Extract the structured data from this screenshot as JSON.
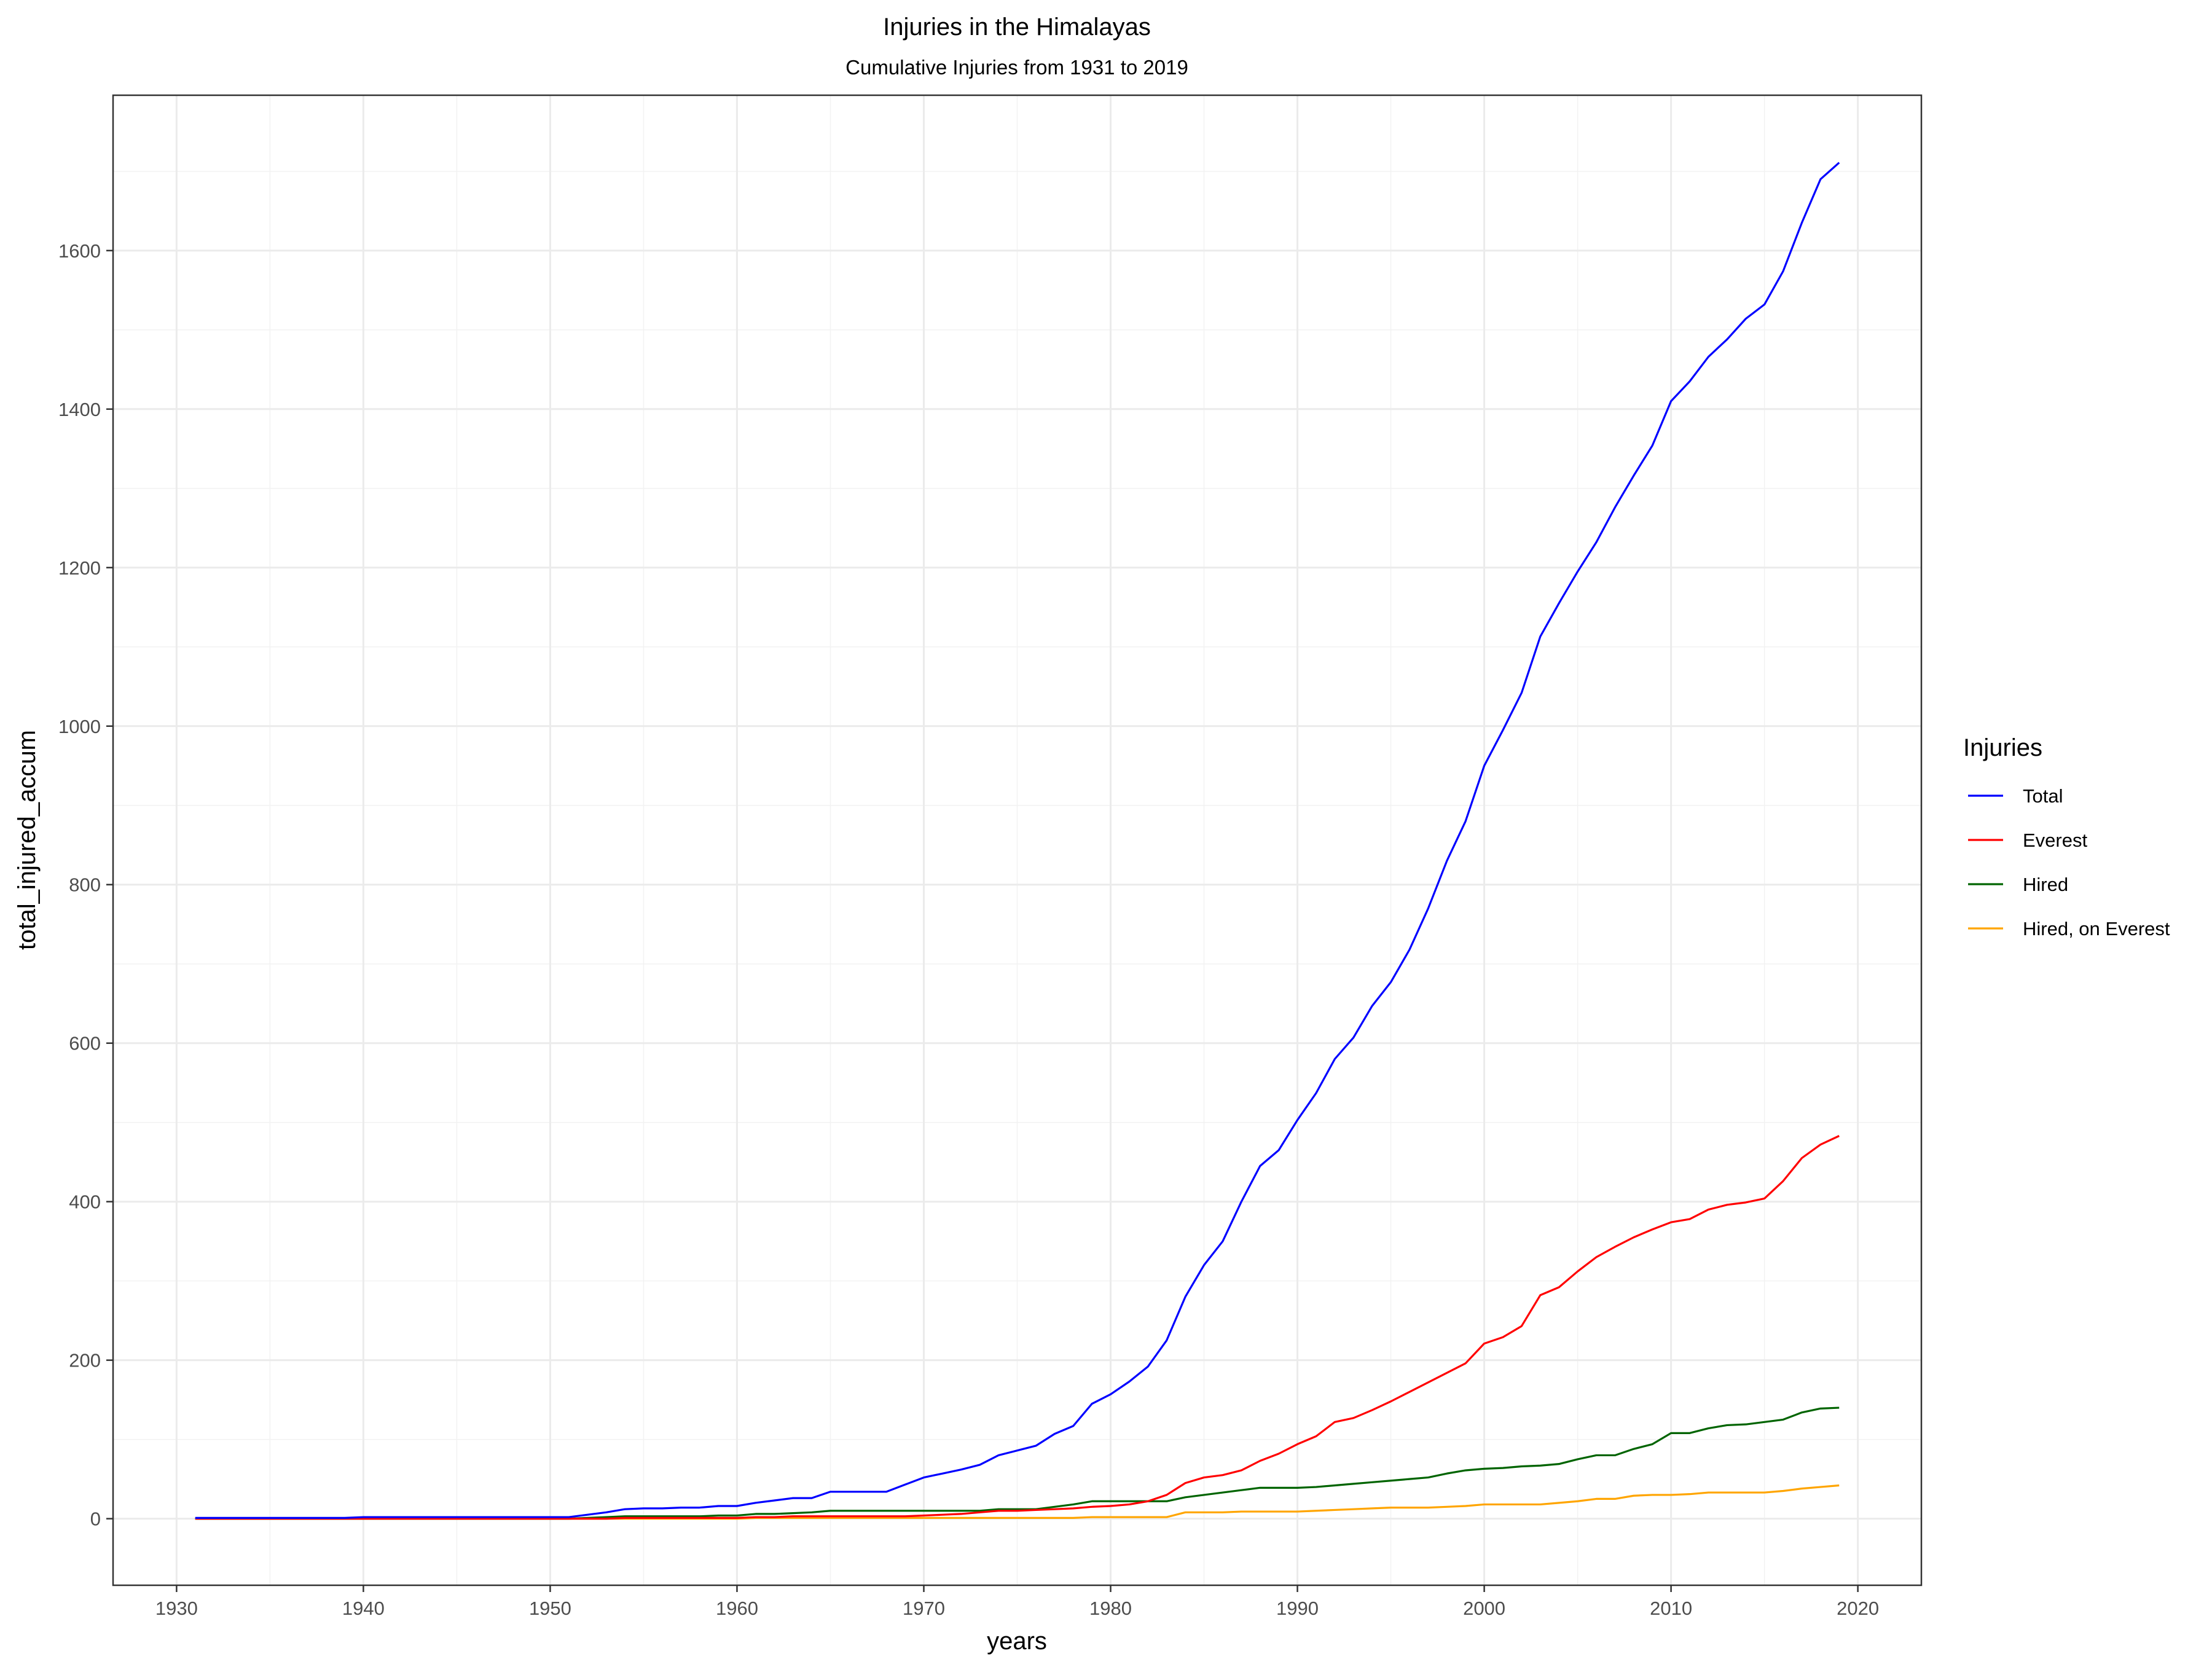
{
  "chart_data": {
    "type": "line",
    "title": "Injuries in the Himalayas",
    "subtitle": "Cumulative Injuries from 1931 to 2019",
    "xlabel": "years",
    "ylabel": "total_injured_accum",
    "xlim": [
      1926.6,
      2023.4
    ],
    "ylim": [
      -84,
      1796
    ],
    "x_ticks": [
      1930,
      1940,
      1950,
      1960,
      1970,
      1980,
      1990,
      2000,
      2010,
      2020
    ],
    "y_ticks": [
      0,
      200,
      400,
      600,
      800,
      1000,
      1200,
      1400,
      1600
    ],
    "grid": true,
    "legend": {
      "title": "Injuries",
      "position": "right"
    },
    "x": [
      1931,
      1932,
      1933,
      1934,
      1935,
      1936,
      1937,
      1938,
      1939,
      1940,
      1941,
      1942,
      1943,
      1944,
      1945,
      1946,
      1947,
      1948,
      1949,
      1950,
      1951,
      1952,
      1953,
      1954,
      1955,
      1956,
      1957,
      1958,
      1959,
      1960,
      1961,
      1962,
      1963,
      1964,
      1965,
      1966,
      1967,
      1968,
      1969,
      1970,
      1971,
      1972,
      1973,
      1974,
      1975,
      1976,
      1977,
      1978,
      1979,
      1980,
      1981,
      1982,
      1983,
      1984,
      1985,
      1986,
      1987,
      1988,
      1989,
      1990,
      1991,
      1992,
      1993,
      1994,
      1995,
      1996,
      1997,
      1998,
      1999,
      2000,
      2001,
      2002,
      2003,
      2004,
      2005,
      2006,
      2007,
      2008,
      2009,
      2010,
      2011,
      2012,
      2013,
      2014,
      2015,
      2016,
      2017,
      2018,
      2019
    ],
    "series": [
      {
        "name": "Total",
        "color": "#0000FF",
        "values": [
          1,
          1,
          1,
          1,
          1,
          1,
          1,
          1,
          1,
          2,
          2,
          2,
          2,
          2,
          2,
          2,
          2,
          2,
          2,
          2,
          2,
          5,
          8,
          12,
          13,
          13,
          14,
          14,
          16,
          16,
          20,
          23,
          26,
          26,
          34,
          34,
          34,
          34,
          43,
          52,
          57,
          62,
          68,
          80,
          86,
          92,
          107,
          117,
          145,
          157,
          173,
          192,
          225,
          280,
          320,
          350,
          400,
          445,
          465,
          503,
          537,
          580,
          607,
          647,
          677,
          718,
          770,
          830,
          880,
          950,
          995,
          1042,
          1113,
          1155,
          1195,
          1232,
          1276,
          1316,
          1354,
          1410,
          1435,
          1466,
          1488,
          1514,
          1532,
          1574,
          1635,
          1690,
          1711
        ]
      },
      {
        "name": "Everest",
        "color": "#FF0000",
        "values": [
          0,
          0,
          0,
          0,
          0,
          0,
          0,
          0,
          0,
          0,
          0,
          0,
          0,
          0,
          0,
          0,
          0,
          0,
          0,
          0,
          0,
          0,
          0,
          1,
          1,
          1,
          1,
          1,
          1,
          1,
          2,
          2,
          3,
          3,
          3,
          3,
          3,
          3,
          3,
          4,
          5,
          6,
          8,
          10,
          10,
          11,
          12,
          13,
          15,
          16,
          18,
          22,
          30,
          45,
          52,
          55,
          61,
          73,
          82,
          94,
          104,
          122,
          127,
          137,
          148,
          160,
          172,
          184,
          196,
          221,
          229,
          243,
          282,
          292,
          312,
          330,
          343,
          355,
          365,
          374,
          378,
          390,
          396,
          399,
          404,
          426,
          455,
          472,
          483
        ]
      },
      {
        "name": "Hired",
        "color": "#006400",
        "values": [
          0,
          0,
          0,
          0,
          0,
          0,
          0,
          0,
          0,
          0,
          0,
          0,
          0,
          0,
          0,
          0,
          0,
          0,
          0,
          0,
          0,
          1,
          2,
          3,
          3,
          3,
          3,
          3,
          4,
          4,
          6,
          6,
          7,
          8,
          10,
          10,
          10,
          10,
          10,
          10,
          10,
          10,
          10,
          12,
          12,
          12,
          15,
          18,
          22,
          22,
          22,
          22,
          22,
          27,
          30,
          33,
          36,
          39,
          39,
          39,
          40,
          42,
          44,
          46,
          48,
          50,
          52,
          57,
          61,
          63,
          64,
          66,
          67,
          69,
          75,
          80,
          80,
          88,
          94,
          108,
          108,
          114,
          118,
          119,
          122,
          125,
          134,
          139,
          140
        ]
      },
      {
        "name": "Hired, on Everest",
        "color": "#FFA500",
        "values": [
          0,
          0,
          0,
          0,
          0,
          0,
          0,
          0,
          0,
          0,
          0,
          0,
          0,
          0,
          0,
          0,
          0,
          0,
          0,
          0,
          0,
          0,
          0,
          0,
          0,
          0,
          0,
          0,
          0,
          0,
          1,
          1,
          1,
          1,
          1,
          1,
          1,
          1,
          1,
          1,
          1,
          1,
          1,
          1,
          1,
          1,
          1,
          1,
          2,
          2,
          2,
          2,
          2,
          8,
          8,
          8,
          9,
          9,
          9,
          9,
          10,
          11,
          12,
          13,
          14,
          14,
          14,
          15,
          16,
          18,
          18,
          18,
          18,
          20,
          22,
          25,
          25,
          29,
          30,
          30,
          31,
          33,
          33,
          33,
          33,
          35,
          38,
          40,
          42
        ]
      }
    ]
  }
}
